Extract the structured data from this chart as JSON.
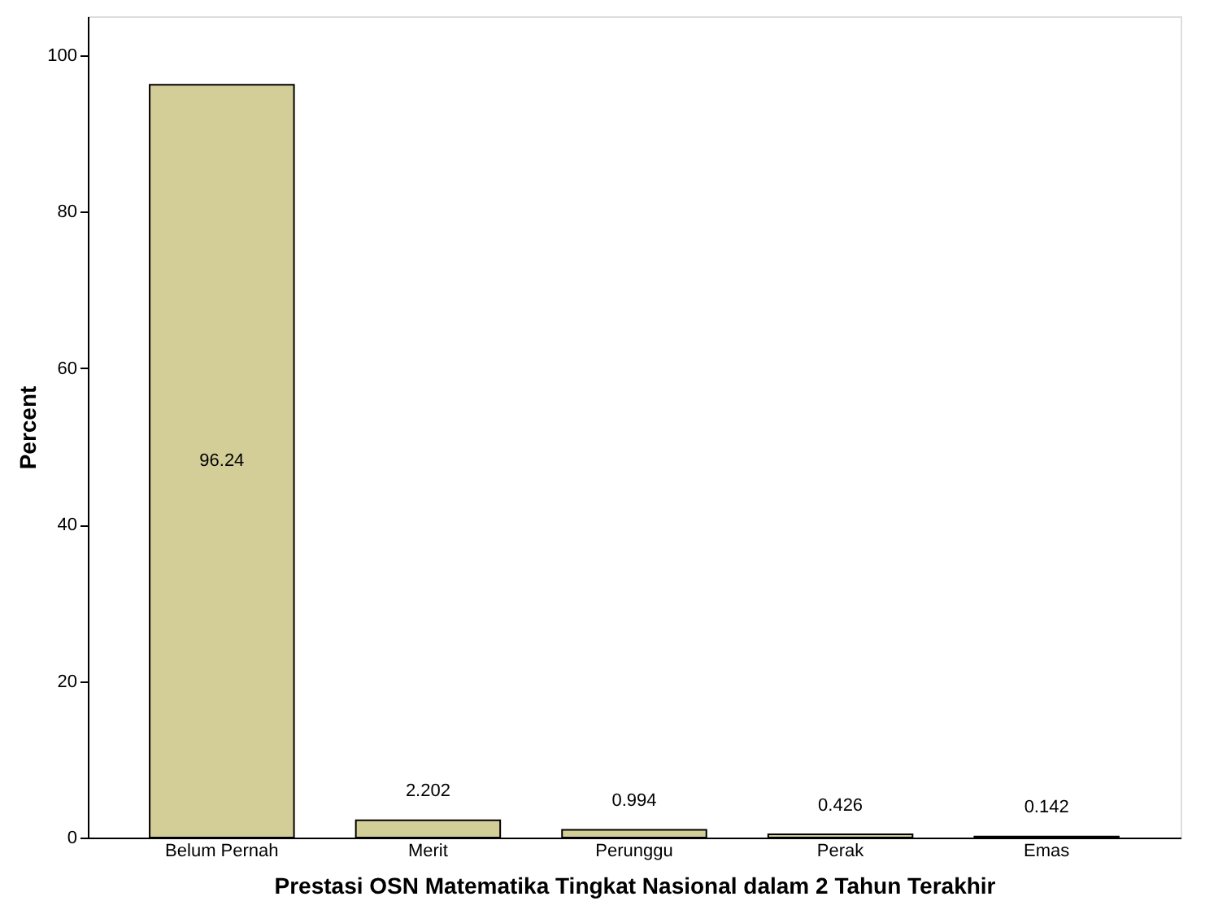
{
  "chart_data": {
    "type": "bar",
    "xlabel": "Prestasi OSN Matematika Tingkat Nasional dalam 2 Tahun Terakhir",
    "ylabel": "Percent",
    "categories": [
      "Belum Pernah",
      "Merit",
      "Perunggu",
      "Perak",
      "Emas"
    ],
    "values": [
      96.24,
      2.202,
      0.994,
      0.426,
      0.142
    ],
    "color": "#d3ce98",
    "ylim": [
      0,
      105
    ],
    "yticks": [
      0,
      20,
      40,
      60,
      80,
      100
    ],
    "grid": false,
    "data_labels": true
  }
}
